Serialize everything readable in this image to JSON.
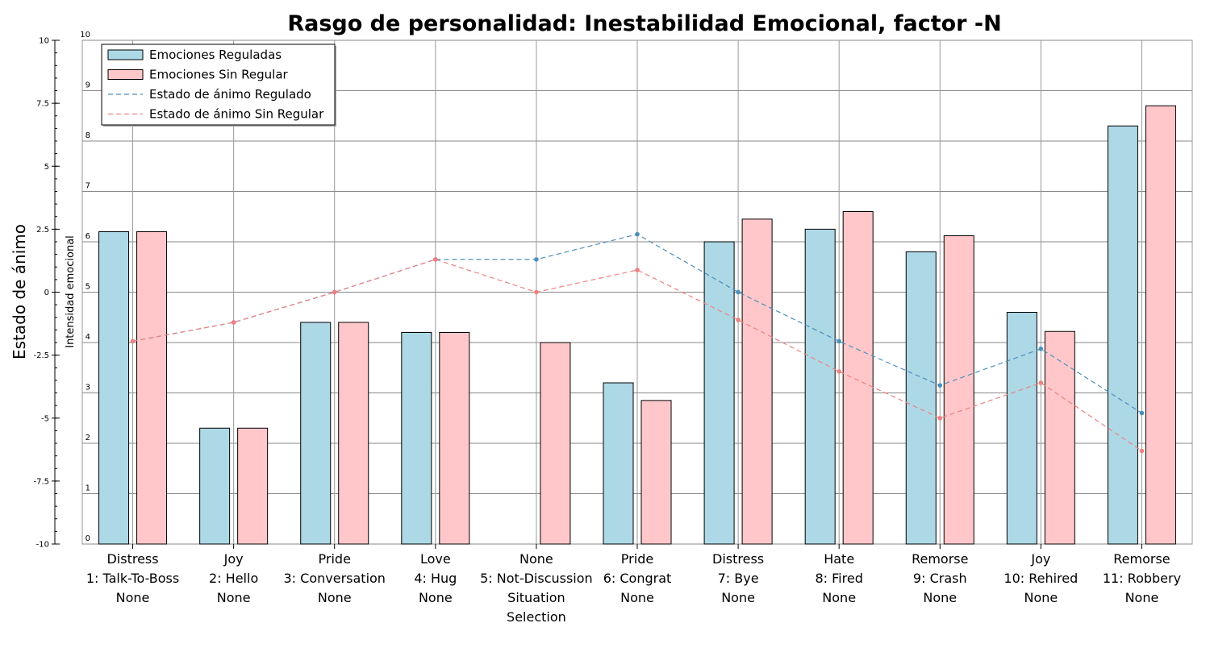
{
  "chart_data": {
    "type": "bar",
    "title": "Rasgo de personalidad: Inestabilidad Emocional, factor -N",
    "ylabel_left": "Estado de ánimo",
    "ylabel_right": "Intensidad emocional",
    "mood_ylim": [
      -10,
      10
    ],
    "intensity_ylim": [
      0,
      10
    ],
    "mood_ticks": [
      "10",
      "7.5",
      "5",
      "2.5",
      "0",
      "-2.5",
      "-5",
      "-7.5",
      "-10"
    ],
    "intensity_ticks": [
      "10",
      "9",
      "8",
      "7",
      "6",
      "5",
      "4",
      "3",
      "2",
      "1",
      "0"
    ],
    "grid": true,
    "legend_position": "top-left",
    "categories": [
      {
        "lines": [
          "Distress",
          "1: Talk-To-Boss",
          "None"
        ]
      },
      {
        "lines": [
          "Joy",
          "2: Hello",
          "None"
        ]
      },
      {
        "lines": [
          "Pride",
          "3: Conversation",
          "None"
        ]
      },
      {
        "lines": [
          "Love",
          "4: Hug",
          "None"
        ]
      },
      {
        "lines": [
          "None",
          "5: Not-Discussion",
          "Situation",
          "Selection"
        ]
      },
      {
        "lines": [
          "Pride",
          "6: Congrat",
          "None"
        ]
      },
      {
        "lines": [
          "Distress",
          "7: Bye",
          "None"
        ]
      },
      {
        "lines": [
          "Hate",
          "8: Fired",
          "None"
        ]
      },
      {
        "lines": [
          "Remorse",
          "9: Crash",
          "None"
        ]
      },
      {
        "lines": [
          "Joy",
          "10: Rehired",
          "None"
        ]
      },
      {
        "lines": [
          "Remorse",
          "11: Robbery",
          "None"
        ]
      }
    ],
    "bar_series": [
      {
        "name": "Emociones Reguladas",
        "color": "#add8e6",
        "values": [
          6.2,
          2.3,
          4.4,
          4.2,
          0,
          3.2,
          6.0,
          6.25,
          5.8,
          4.6,
          8.3
        ]
      },
      {
        "name": "Emociones Sin Regular",
        "color": "#ffc7ca",
        "values": [
          6.2,
          2.3,
          4.4,
          4.2,
          4.0,
          2.85,
          6.45,
          6.6,
          6.12,
          4.22,
          8.7
        ]
      }
    ],
    "line_series": [
      {
        "name": "Estado de ánimo Regulado",
        "color": "#4c8fbd",
        "dash": true,
        "values": [
          -1.95,
          -1.2,
          0,
          1.3,
          1.3,
          2.3,
          0,
          -1.95,
          -3.7,
          -2.25,
          -4.8
        ]
      },
      {
        "name": "Estado de ánimo Sin Regular",
        "color": "#f08080",
        "dash": true,
        "values": [
          -1.95,
          -1.2,
          0,
          1.3,
          0,
          0.88,
          -1.1,
          -3.15,
          -5.0,
          -3.6,
          -6.3
        ]
      }
    ]
  }
}
